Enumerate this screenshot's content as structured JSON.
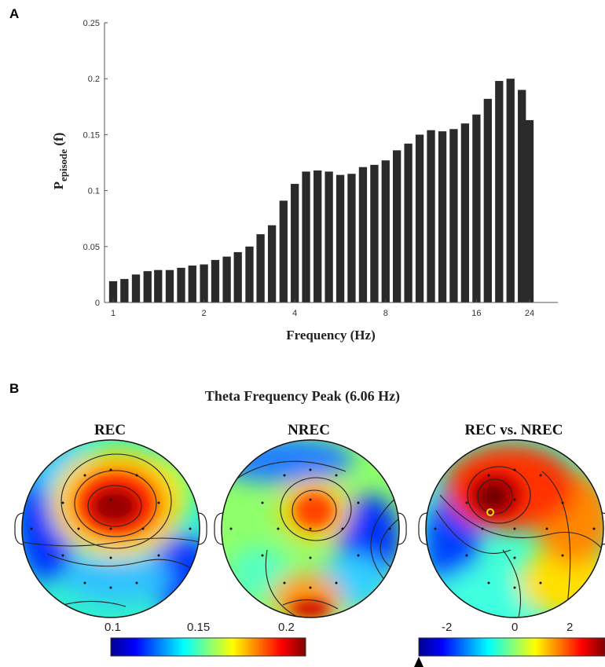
{
  "panel_a_label": "A",
  "panel_b_label": "B",
  "chart_data": [
    {
      "type": "bar",
      "xlabel": "Frequency (Hz)",
      "ylabel_main": "P",
      "ylabel_sub": "episode",
      "ylabel_tail": " (f)",
      "x_scale": "log",
      "x_ticks": [
        1,
        2,
        4,
        8,
        16,
        24
      ],
      "x_tick_labels": [
        "1",
        "2",
        "4",
        "8",
        "16",
        "24"
      ],
      "ylim": [
        0,
        0.25
      ],
      "y_ticks": [
        0,
        0.05,
        0.1,
        0.15,
        0.2,
        0.25
      ],
      "y_tick_labels": [
        "0",
        "0.05",
        "0.1",
        "0.15",
        "0.2",
        "0.25"
      ],
      "bar_color": "#2a2a2a",
      "x": [
        1.0,
        1.09,
        1.19,
        1.3,
        1.41,
        1.54,
        1.68,
        1.83,
        2.0,
        2.18,
        2.38,
        2.59,
        2.83,
        3.08,
        3.36,
        3.67,
        4.0,
        4.36,
        4.76,
        5.19,
        5.66,
        6.17,
        6.73,
        7.34,
        8.0,
        8.72,
        9.51,
        10.37,
        11.31,
        12.34,
        13.45,
        14.67,
        16.0,
        17.45,
        19.03,
        20.75,
        22.63,
        24.0
      ],
      "values": [
        0.019,
        0.021,
        0.025,
        0.028,
        0.029,
        0.029,
        0.031,
        0.033,
        0.034,
        0.038,
        0.041,
        0.045,
        0.05,
        0.061,
        0.069,
        0.091,
        0.106,
        0.117,
        0.118,
        0.117,
        0.114,
        0.115,
        0.121,
        0.123,
        0.127,
        0.136,
        0.142,
        0.15,
        0.154,
        0.153,
        0.155,
        0.16,
        0.168,
        0.182,
        0.198,
        0.2,
        0.19,
        0.163
      ]
    }
  ],
  "panel_b": {
    "title": "Theta Frequency Peak  (6.06 Hz)",
    "maps": [
      {
        "title": "REC",
        "colorbar_ticks": [
          "0.1",
          "0.15",
          "0.2"
        ]
      },
      {
        "title": "NREC"
      },
      {
        "title": "REC vs. NREC",
        "colorbar_ticks": [
          "-2",
          "0",
          "2"
        ]
      }
    ],
    "colormap": "jet"
  }
}
